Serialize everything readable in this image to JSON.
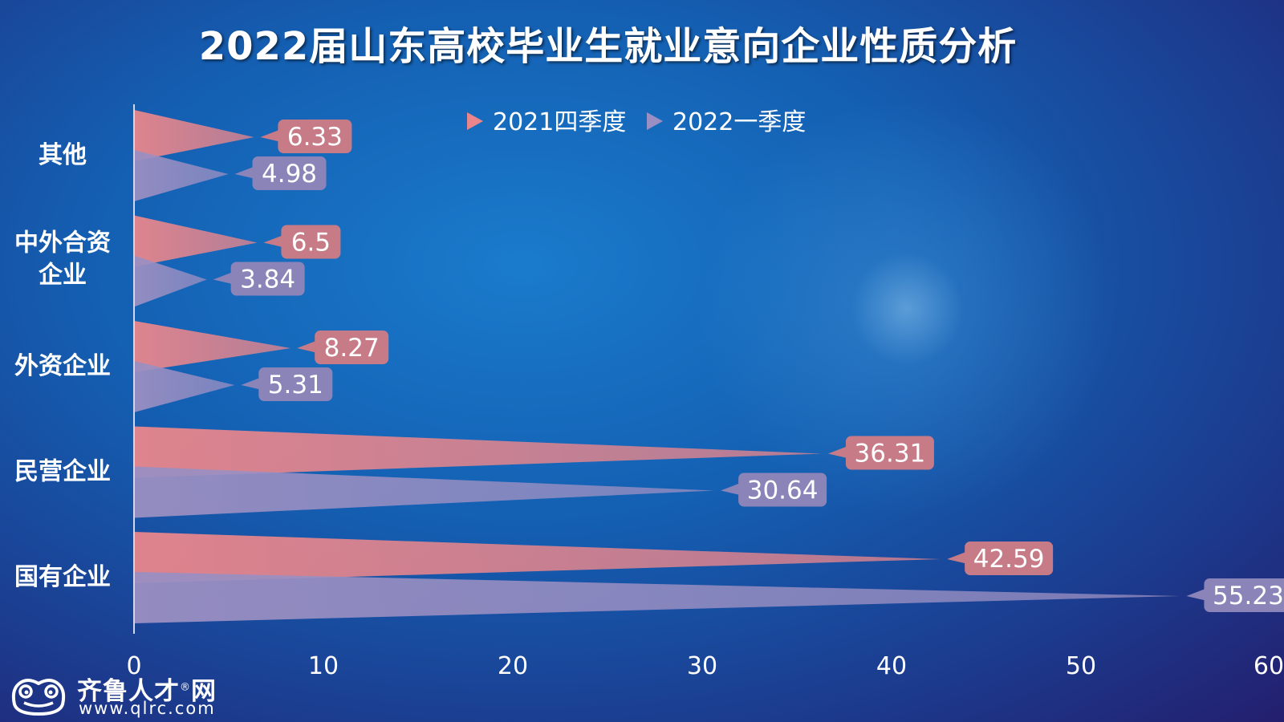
{
  "title": "2022届山东高校毕业生就业意向企业性质分析",
  "brand": {
    "name": "齐鲁人才",
    "mark": "®",
    "suffix": "网",
    "url": "www.qlrc.com",
    "logo_icon": "frog-icon"
  },
  "colors": {
    "series1": "#e8868c",
    "series2": "#9a8fc2",
    "axis": "#cfd8ea"
  },
  "chart_data": {
    "type": "bar",
    "orientation": "horizontal",
    "mark_shape": "triangle",
    "title": "2022届山东高校毕业生就业意向企业性质分析",
    "categories": [
      "其他",
      "中外合资\n企业",
      "外资企业",
      "民营企业",
      "国有企业"
    ],
    "series": [
      {
        "name": "2021四季度",
        "values": [
          6.33,
          6.5,
          8.27,
          36.31,
          42.59
        ]
      },
      {
        "name": "2022一季度",
        "values": [
          4.98,
          3.84,
          5.31,
          30.64,
          55.23
        ]
      }
    ],
    "xlim": [
      0,
      60
    ],
    "xticks": [
      0,
      10,
      20,
      30,
      40,
      50,
      60
    ],
    "legend_position": "top-center",
    "grid": false,
    "data_labels": true
  }
}
